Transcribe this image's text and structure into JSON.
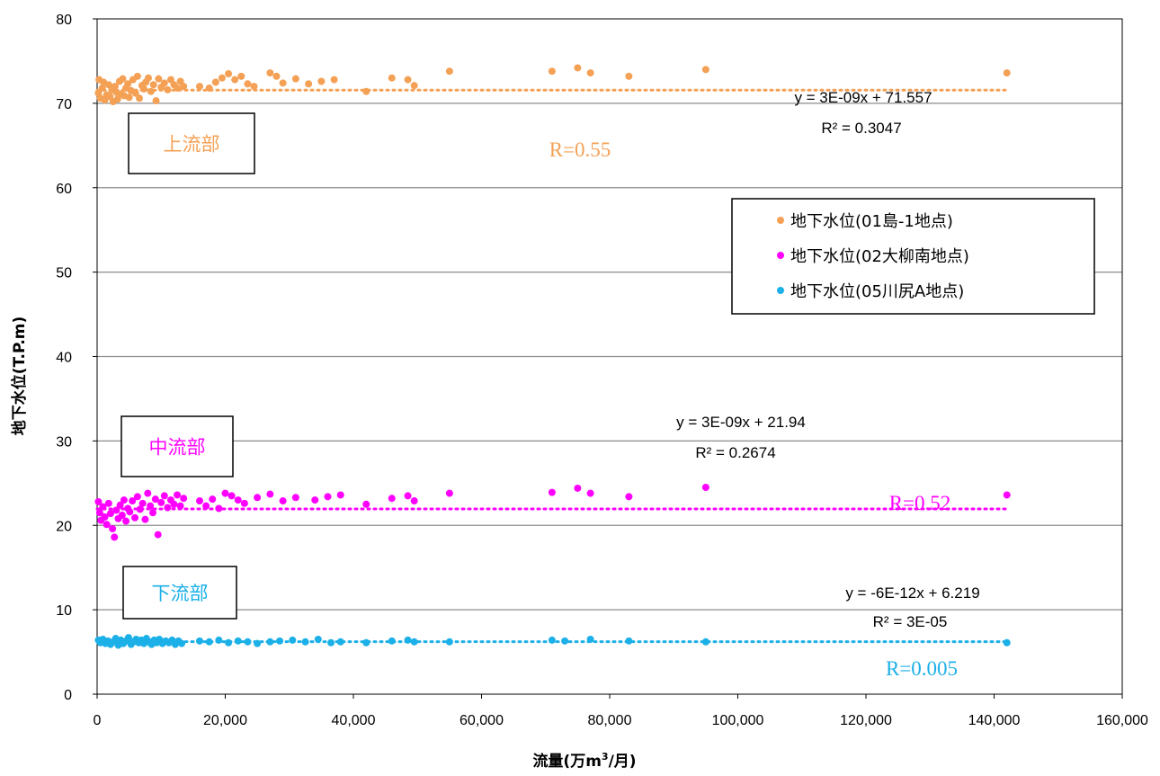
{
  "chart_data": {
    "type": "scatter",
    "xlabel_main": "流量(万m",
    "xlabel_sup": "3",
    "xlabel_end": "/月)",
    "ylabel": "地下水位(T.P.m)",
    "xlim": [
      0,
      160000
    ],
    "ylim": [
      0,
      80
    ],
    "x_ticks": [
      "0",
      "20,000",
      "40,000",
      "60,000",
      "80,000",
      "100,000",
      "120,000",
      "140,000",
      "160,000"
    ],
    "y_ticks": [
      "0",
      "10",
      "20",
      "30",
      "40",
      "50",
      "60",
      "70",
      "80"
    ],
    "grid": "horizontal",
    "legend_position": "right-middle",
    "series": [
      {
        "name": "地下水位(01島-1地点)",
        "color": "#F4A055",
        "region_label": "上流部",
        "r_label": "R=0.55",
        "equation": "y = 3E-09x + 71.557",
        "r2": "R² = 0.3047",
        "trend": {
          "slope": 3e-09,
          "intercept": 71.557,
          "x_end": 142000
        },
        "points": [
          [
            200,
            71.2
          ],
          [
            300,
            72.8
          ],
          [
            500,
            70.6
          ],
          [
            800,
            71.8
          ],
          [
            1000,
            72.5
          ],
          [
            1200,
            70.4
          ],
          [
            1500,
            71.0
          ],
          [
            1800,
            72.2
          ],
          [
            2000,
            70.8
          ],
          [
            2300,
            71.6
          ],
          [
            2500,
            70.2
          ],
          [
            2800,
            72.0
          ],
          [
            3000,
            71.3
          ],
          [
            3200,
            70.5
          ],
          [
            3500,
            72.6
          ],
          [
            3800,
            71.1
          ],
          [
            4000,
            72.9
          ],
          [
            4200,
            70.9
          ],
          [
            4500,
            71.8
          ],
          [
            4800,
            72.3
          ],
          [
            5000,
            70.7
          ],
          [
            5300,
            71.5
          ],
          [
            5600,
            72.8
          ],
          [
            6000,
            71.2
          ],
          [
            6300,
            73.2
          ],
          [
            6600,
            70.6
          ],
          [
            7000,
            72.1
          ],
          [
            7300,
            71.7
          ],
          [
            7600,
            72.5
          ],
          [
            8000,
            73.0
          ],
          [
            8400,
            71.4
          ],
          [
            8800,
            72.2
          ],
          [
            9200,
            70.3
          ],
          [
            9600,
            72.9
          ],
          [
            10000,
            71.9
          ],
          [
            10500,
            72.4
          ],
          [
            11000,
            71.6
          ],
          [
            11500,
            72.8
          ],
          [
            12000,
            72.2
          ],
          [
            12500,
            71.8
          ],
          [
            13000,
            72.6
          ],
          [
            13500,
            72.0
          ],
          [
            16000,
            72.0
          ],
          [
            17500,
            71.8
          ],
          [
            18500,
            72.5
          ],
          [
            19500,
            73.0
          ],
          [
            20500,
            73.5
          ],
          [
            21500,
            72.8
          ],
          [
            22500,
            73.2
          ],
          [
            23500,
            72.3
          ],
          [
            24500,
            72.0
          ],
          [
            27000,
            73.6
          ],
          [
            28000,
            73.2
          ],
          [
            29000,
            72.4
          ],
          [
            31000,
            72.9
          ],
          [
            33000,
            72.3
          ],
          [
            35000,
            72.6
          ],
          [
            37000,
            72.8
          ],
          [
            42000,
            71.4
          ],
          [
            46000,
            73.0
          ],
          [
            48500,
            72.8
          ],
          [
            49500,
            72.1
          ],
          [
            55000,
            73.8
          ],
          [
            71000,
            73.8
          ],
          [
            75000,
            74.2
          ],
          [
            77000,
            73.6
          ],
          [
            83000,
            73.2
          ],
          [
            95000,
            74.0
          ],
          [
            142000,
            73.6
          ]
        ]
      },
      {
        "name": "地下水位(02大柳南地点)",
        "color": "#FF00FF",
        "region_label": "中流部",
        "r_label": "R=0.52",
        "equation": "y = 3E-09x + 21.94",
        "r2": "R² = 0.2674",
        "trend": {
          "slope": 3e-09,
          "intercept": 21.94,
          "x_end": 142000
        },
        "points": [
          [
            200,
            22.8
          ],
          [
            400,
            21.5
          ],
          [
            600,
            20.6
          ],
          [
            900,
            22.2
          ],
          [
            1200,
            21.0
          ],
          [
            1500,
            20.1
          ],
          [
            1800,
            22.6
          ],
          [
            2100,
            21.4
          ],
          [
            2400,
            19.6
          ],
          [
            2700,
            18.6
          ],
          [
            3000,
            21.8
          ],
          [
            3300,
            20.8
          ],
          [
            3600,
            22.4
          ],
          [
            3900,
            21.2
          ],
          [
            4200,
            23.0
          ],
          [
            4500,
            20.5
          ],
          [
            4800,
            22.0
          ],
          [
            5100,
            21.6
          ],
          [
            5500,
            22.9
          ],
          [
            5900,
            20.9
          ],
          [
            6300,
            23.4
          ],
          [
            6700,
            21.9
          ],
          [
            7100,
            22.6
          ],
          [
            7500,
            20.7
          ],
          [
            7900,
            23.8
          ],
          [
            8300,
            22.3
          ],
          [
            8700,
            21.5
          ],
          [
            9100,
            23.1
          ],
          [
            9500,
            18.9
          ],
          [
            10000,
            22.7
          ],
          [
            10500,
            23.5
          ],
          [
            11000,
            22.1
          ],
          [
            11500,
            23.0
          ],
          [
            12000,
            22.5
          ],
          [
            12500,
            23.6
          ],
          [
            13000,
            22.3
          ],
          [
            13500,
            23.2
          ],
          [
            16000,
            22.9
          ],
          [
            17000,
            22.3
          ],
          [
            18000,
            23.1
          ],
          [
            19000,
            22.0
          ],
          [
            20000,
            23.8
          ],
          [
            21000,
            23.5
          ],
          [
            22000,
            23.0
          ],
          [
            23000,
            22.6
          ],
          [
            25000,
            23.3
          ],
          [
            27000,
            23.7
          ],
          [
            29000,
            22.9
          ],
          [
            31000,
            23.3
          ],
          [
            34000,
            23.0
          ],
          [
            36000,
            23.4
          ],
          [
            38000,
            23.6
          ],
          [
            42000,
            22.5
          ],
          [
            46000,
            23.2
          ],
          [
            48500,
            23.5
          ],
          [
            49500,
            22.9
          ],
          [
            55000,
            23.8
          ],
          [
            71000,
            23.9
          ],
          [
            75000,
            24.4
          ],
          [
            77000,
            23.8
          ],
          [
            83000,
            23.4
          ],
          [
            95000,
            24.5
          ],
          [
            142000,
            23.6
          ]
        ]
      },
      {
        "name": "地下水位(05川尻A地点)",
        "color": "#1CB0E8",
        "region_label": "下流部",
        "r_label": "R=0.005",
        "equation": "y = -6E-12x + 6.219",
        "r2": "R² = 3E-05",
        "trend": {
          "slope": -6e-12,
          "intercept": 6.219,
          "x_end": 142000
        },
        "points": [
          [
            200,
            6.4
          ],
          [
            500,
            6.1
          ],
          [
            900,
            6.5
          ],
          [
            1300,
            6.0
          ],
          [
            1700,
            6.3
          ],
          [
            2100,
            5.9
          ],
          [
            2500,
            6.2
          ],
          [
            2900,
            6.6
          ],
          [
            3300,
            5.8
          ],
          [
            3700,
            6.4
          ],
          [
            4100,
            6.0
          ],
          [
            4500,
            6.3
          ],
          [
            4900,
            6.7
          ],
          [
            5300,
            5.9
          ],
          [
            5700,
            6.2
          ],
          [
            6100,
            6.5
          ],
          [
            6500,
            6.1
          ],
          [
            6900,
            6.4
          ],
          [
            7300,
            6.0
          ],
          [
            7700,
            6.6
          ],
          [
            8100,
            6.2
          ],
          [
            8500,
            5.9
          ],
          [
            8900,
            6.4
          ],
          [
            9300,
            6.1
          ],
          [
            9700,
            6.5
          ],
          [
            10200,
            6.0
          ],
          [
            10700,
            6.3
          ],
          [
            11200,
            6.1
          ],
          [
            11700,
            6.4
          ],
          [
            12200,
            5.9
          ],
          [
            12700,
            6.3
          ],
          [
            13200,
            6.0
          ],
          [
            16000,
            6.3
          ],
          [
            17500,
            6.2
          ],
          [
            19000,
            6.4
          ],
          [
            20500,
            6.1
          ],
          [
            22000,
            6.3
          ],
          [
            23500,
            6.2
          ],
          [
            25000,
            6.0
          ],
          [
            27000,
            6.2
          ],
          [
            28500,
            6.3
          ],
          [
            30500,
            6.4
          ],
          [
            32500,
            6.2
          ],
          [
            34500,
            6.5
          ],
          [
            36500,
            6.1
          ],
          [
            38000,
            6.2
          ],
          [
            42000,
            6.1
          ],
          [
            46000,
            6.3
          ],
          [
            48500,
            6.4
          ],
          [
            49500,
            6.2
          ],
          [
            55000,
            6.2
          ],
          [
            71000,
            6.4
          ],
          [
            73000,
            6.3
          ],
          [
            77000,
            6.5
          ],
          [
            83000,
            6.3
          ],
          [
            95000,
            6.2
          ],
          [
            142000,
            6.1
          ]
        ]
      }
    ]
  }
}
